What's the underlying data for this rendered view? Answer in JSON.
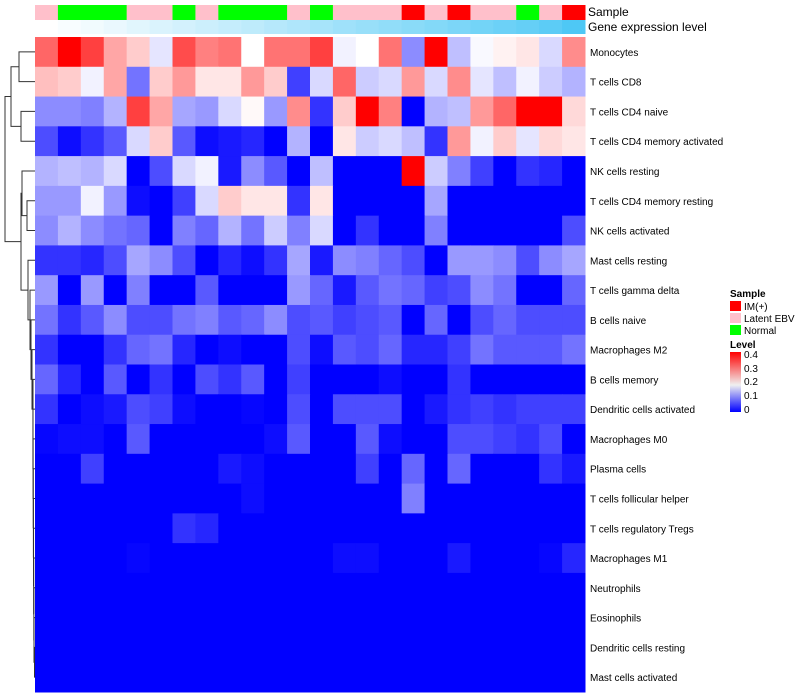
{
  "chart_data": {
    "type": "heatmap",
    "annotation_labels": [
      "Sample",
      "Gene expression level"
    ],
    "sample_groups": [
      "Latent EBV",
      "Normal",
      "Normal",
      "Normal",
      "Latent EBV",
      "Latent EBV",
      "Normal",
      "Latent EBV",
      "Normal",
      "Normal",
      "Normal",
      "Latent EBV",
      "Normal",
      "Latent EBV",
      "Latent EBV",
      "Latent EBV",
      "IM(+)",
      "Latent EBV",
      "IM(+)",
      "Latent EBV",
      "Latent EBV",
      "Normal",
      "Latent EBV",
      "IM(+)"
    ],
    "gene_expression_level": [
      0,
      0.04,
      0.08,
      0.12,
      0.17,
      0.21,
      0.25,
      0.29,
      0.33,
      0.37,
      0.41,
      0.45,
      0.5,
      0.54,
      0.58,
      0.62,
      0.66,
      0.7,
      0.74,
      0.79,
      0.83,
      0.87,
      0.92,
      1.0
    ],
    "rows": [
      "Monocytes",
      "T cells CD8",
      "T cells CD4 naive",
      "T cells CD4 memory activated",
      "NK cells resting",
      "T cells CD4 memory resting",
      "NK cells activated",
      "Mast cells resting",
      "T cells gamma delta",
      "B cells naive",
      "Macrophages M2",
      "B cells memory",
      "Dendritic cells activated",
      "Macrophages M0",
      "Plasma cells",
      "T cells follicular helper",
      "T cells regulatory  Tregs",
      "Macrophages M1",
      "Neutrophils",
      "Eosinophils",
      "Dendritic cells resting",
      "Mast cells activated"
    ],
    "values": [
      [
        0.32,
        0.4,
        0.35,
        0.27,
        0.24,
        0.18,
        0.34,
        0.3,
        0.31,
        0.2,
        0.31,
        0.31,
        0.35,
        0.19,
        0.2,
        0.31,
        0.11,
        0.4,
        0.15,
        0.195,
        0.21,
        0.22,
        0.17,
        0.29
      ],
      [
        0.25,
        0.24,
        0.19,
        0.27,
        0.09,
        0.24,
        0.28,
        0.22,
        0.22,
        0.28,
        0.24,
        0.05,
        0.17,
        0.32,
        0.16,
        0.17,
        0.28,
        0.17,
        0.29,
        0.18,
        0.15,
        0.19,
        0.16,
        0.14
      ],
      [
        0.11,
        0.11,
        0.1,
        0.14,
        0.35,
        0.27,
        0.13,
        0.12,
        0.17,
        0.205,
        0.12,
        0.29,
        0.04,
        0.24,
        0.4,
        0.3,
        0.0,
        0.14,
        0.15,
        0.28,
        0.32,
        0.4,
        0.4,
        0.23
      ],
      [
        0.06,
        0.01,
        0.04,
        0.07,
        0.17,
        0.24,
        0.07,
        0.01,
        0.02,
        0.03,
        0.0,
        0.14,
        0.0,
        0.22,
        0.16,
        0.17,
        0.15,
        0.04,
        0.28,
        0.19,
        0.24,
        0.18,
        0.23,
        0.22
      ],
      [
        0.14,
        0.15,
        0.14,
        0.17,
        0,
        0.06,
        0.17,
        0.19,
        0.02,
        0.11,
        0.07,
        0,
        0.15,
        0,
        0,
        0,
        0.4,
        0.16,
        0.1,
        0.05,
        0,
        0.04,
        0.03,
        0
      ],
      [
        0.12,
        0.12,
        0.19,
        0.12,
        0.01,
        0,
        0.05,
        0.17,
        0.24,
        0.22,
        0.22,
        0.04,
        0.22,
        0,
        0,
        0,
        0,
        0.13,
        0,
        0,
        0,
        0,
        0,
        0
      ],
      [
        0.11,
        0.14,
        0.11,
        0.09,
        0.08,
        0,
        0.1,
        0.08,
        0.14,
        0.09,
        0.16,
        0.1,
        0.17,
        0,
        0.04,
        0,
        0,
        0.1,
        0,
        0,
        0,
        0,
        0,
        0.06
      ],
      [
        0.04,
        0.04,
        0.03,
        0.06,
        0.13,
        0.11,
        0.06,
        0,
        0.03,
        0.01,
        0.04,
        0.13,
        0.02,
        0.11,
        0.1,
        0.08,
        0.06,
        0,
        0.12,
        0.12,
        0.11,
        0.06,
        0.11,
        0.13
      ],
      [
        0.12,
        0,
        0.12,
        0,
        0.1,
        0,
        0,
        0.07,
        0,
        0,
        0,
        0.12,
        0.08,
        0.02,
        0.07,
        0.09,
        0.08,
        0.05,
        0.06,
        0.11,
        0.09,
        0,
        0,
        0.08
      ],
      [
        0.09,
        0.04,
        0.07,
        0.11,
        0.06,
        0.06,
        0.09,
        0.1,
        0.07,
        0.08,
        0.11,
        0.06,
        0.07,
        0.05,
        0.06,
        0.07,
        0,
        0.08,
        0,
        0.06,
        0.08,
        0.06,
        0.06,
        0.06
      ],
      [
        0.04,
        0,
        0,
        0.04,
        0.08,
        0.09,
        0.03,
        0,
        0.01,
        0,
        0,
        0.06,
        0.01,
        0.07,
        0.06,
        0.08,
        0.03,
        0.03,
        0.05,
        0.09,
        0.07,
        0.07,
        0.07,
        0.09
      ],
      [
        0.08,
        0.03,
        0,
        0.07,
        0,
        0.04,
        0,
        0.06,
        0.04,
        0.07,
        0,
        0.05,
        0,
        0,
        0,
        0.01,
        0,
        0,
        0.04,
        0,
        0,
        0,
        0,
        0
      ],
      [
        0.04,
        0,
        0.01,
        0.02,
        0.06,
        0.05,
        0.01,
        0,
        0,
        0.005,
        0,
        0.06,
        0,
        0.06,
        0.06,
        0.06,
        0,
        0.02,
        0.04,
        0.05,
        0.04,
        0.05,
        0.05,
        0.05
      ],
      [
        0.005,
        0.01,
        0.01,
        0,
        0.07,
        0,
        0,
        0,
        0,
        0,
        0.01,
        0.07,
        0,
        0,
        0.07,
        0.01,
        0,
        0,
        0.06,
        0.06,
        0.05,
        0.04,
        0.06,
        0
      ],
      [
        0,
        0,
        0.05,
        0,
        0,
        0,
        0,
        0,
        0.02,
        0.01,
        0,
        0,
        0,
        0,
        0.05,
        0,
        0.08,
        0,
        0.08,
        0,
        0,
        0,
        0.04,
        0.02
      ],
      [
        0,
        0,
        0,
        0,
        0,
        0,
        0,
        0,
        0,
        0.01,
        0,
        0,
        0,
        0,
        0,
        0,
        0.1,
        0,
        0,
        0,
        0,
        0,
        0,
        0
      ],
      [
        0,
        0,
        0,
        0,
        0,
        0,
        0.04,
        0.03,
        0,
        0,
        0,
        0,
        0,
        0,
        0,
        0,
        0,
        0,
        0,
        0,
        0,
        0,
        0,
        0
      ],
      [
        0,
        0,
        0,
        0,
        0.005,
        0,
        0,
        0,
        0,
        0,
        0,
        0,
        0,
        0.01,
        0.01,
        0,
        0,
        0,
        0.02,
        0,
        0,
        0,
        0.005,
        0.03
      ],
      [
        0,
        0,
        0,
        0,
        0,
        0,
        0,
        0,
        0,
        0,
        0,
        0,
        0,
        0,
        0,
        0,
        0,
        0,
        0,
        0,
        0,
        0,
        0,
        0
      ],
      [
        0,
        0,
        0,
        0,
        0,
        0,
        0,
        0,
        0,
        0,
        0,
        0,
        0,
        0,
        0,
        0,
        0,
        0,
        0,
        0,
        0,
        0,
        0,
        0
      ],
      [
        0,
        0,
        0,
        0,
        0,
        0,
        0,
        0,
        0,
        0,
        0,
        0,
        0,
        0,
        0,
        0,
        0,
        0,
        0,
        0,
        0,
        0,
        0,
        0
      ],
      [
        0,
        0,
        0,
        0,
        0,
        0,
        0,
        0,
        0,
        0,
        0,
        0,
        0,
        0,
        0,
        0,
        0,
        0,
        0,
        0,
        0,
        0,
        0,
        0
      ]
    ],
    "color_scale": {
      "min": 0,
      "mid": 0.2,
      "max": 0.4,
      "low_color": "#0000ff",
      "mid_color": "#ffffff",
      "high_color": "#ff0000"
    },
    "legend": {
      "position": "right",
      "sample_title": "Sample",
      "sample_entries": [
        {
          "label": "IM(+)",
          "color": "#ff0000"
        },
        {
          "label": "Latent EBV",
          "color": "#ffc0cb"
        },
        {
          "label": "Normal",
          "color": "#00ff00"
        }
      ],
      "level_title": "Level",
      "level_ticks": [
        "0.4",
        "0.3",
        "0.2",
        "0.1",
        "0"
      ]
    },
    "gene_level_colors": {
      "low": "#ffffff",
      "high": "#4ec8f5"
    }
  }
}
